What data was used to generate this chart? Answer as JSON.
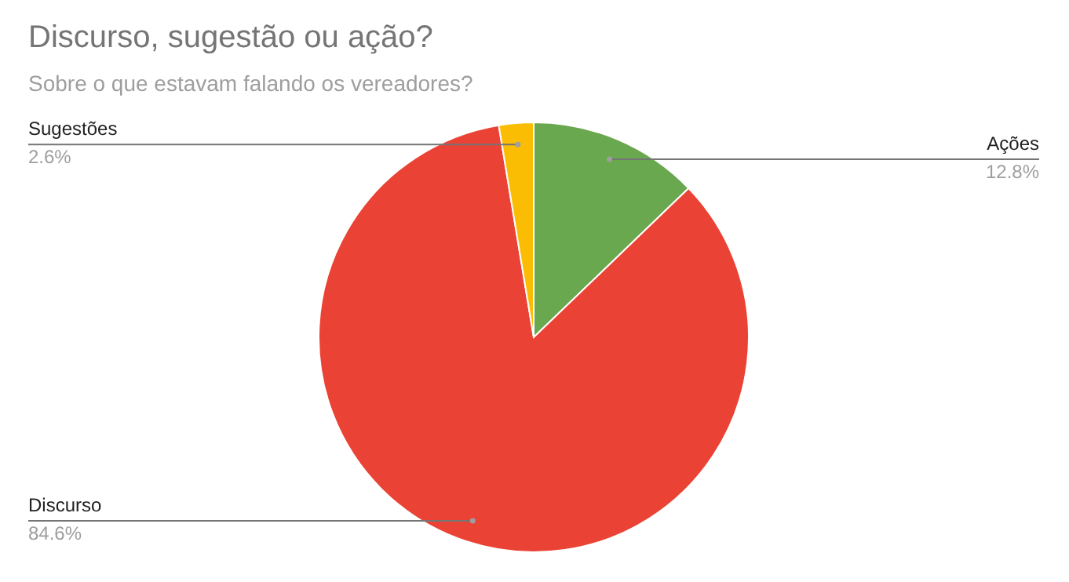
{
  "chart_data": {
    "type": "pie",
    "title": "Discurso, sugestão ou ação?",
    "subtitle": "Sobre o que estavam falando os vereadores?",
    "categories": [
      "Ações",
      "Discurso",
      "Sugestões"
    ],
    "values": [
      12.8,
      84.6,
      2.6
    ],
    "colors": [
      "#6aa84f",
      "#ea4335",
      "#fbbc04"
    ],
    "value_labels": [
      "12.8%",
      "84.6%",
      "2.6%"
    ]
  }
}
